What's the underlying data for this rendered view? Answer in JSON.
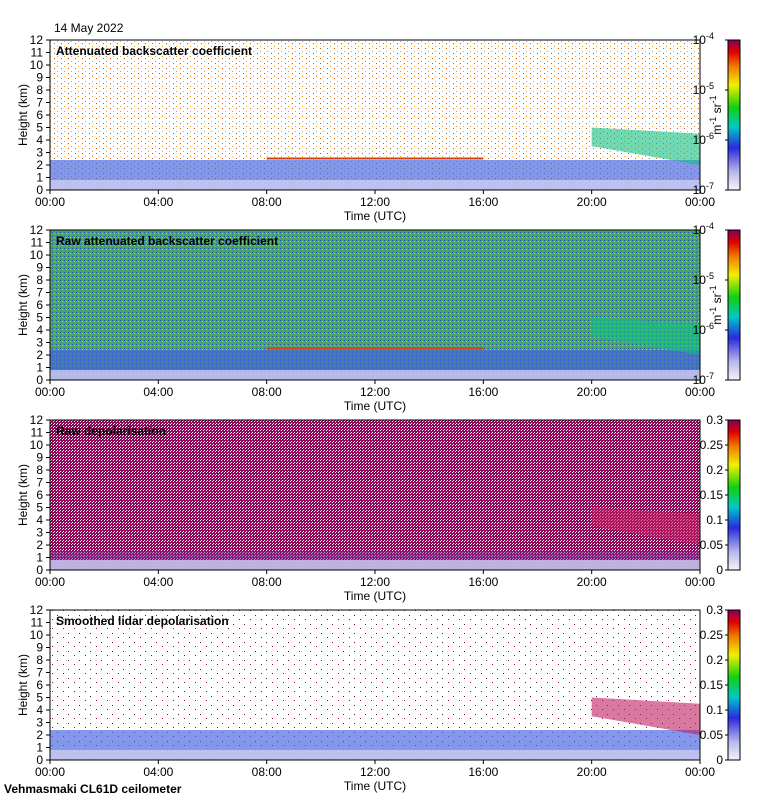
{
  "date_label": "14 May 2022",
  "footer_label": "Vehmasmaki CL61D ceilometer",
  "colors": {
    "clear": "#ffffff",
    "low": "#c8c8f0",
    "mid": "#2040e0",
    "high": "#e01010",
    "top": "#800060"
  },
  "chart_data": [
    {
      "type": "heatmap",
      "title": "Attenuated backscatter coefficient",
      "xlabel": "Time (UTC)",
      "ylabel": "Height (km)",
      "xticks": [
        "00:00",
        "04:00",
        "08:00",
        "12:00",
        "16:00",
        "20:00",
        "00:00"
      ],
      "yticks": [
        "0",
        "1",
        "2",
        "3",
        "4",
        "5",
        "6",
        "7",
        "8",
        "9",
        "10",
        "11",
        "12"
      ],
      "ylim": [
        0,
        12
      ],
      "color_scale": "log",
      "colorbar_ticks": [
        "10",
        "10",
        "10",
        "10"
      ],
      "colorbar_exps": [
        "-7",
        "-6",
        "-5",
        "-4"
      ],
      "colorbar_unit": "m",
      "colorbar_unit_exp1": "-1",
      "colorbar_unit2": " sr",
      "colorbar_unit_exp2": "-1"
    },
    {
      "type": "heatmap",
      "title": "Raw attenuated backscatter coefficient",
      "xlabel": "Time (UTC)",
      "ylabel": "Height (km)",
      "xticks": [
        "00:00",
        "04:00",
        "08:00",
        "12:00",
        "16:00",
        "20:00",
        "00:00"
      ],
      "yticks": [
        "0",
        "1",
        "2",
        "3",
        "4",
        "5",
        "6",
        "7",
        "8",
        "9",
        "10",
        "11",
        "12"
      ],
      "ylim": [
        0,
        12
      ],
      "color_scale": "log",
      "colorbar_ticks": [
        "10",
        "10",
        "10",
        "10"
      ],
      "colorbar_exps": [
        "-7",
        "-6",
        "-5",
        "-4"
      ],
      "colorbar_unit": "m",
      "colorbar_unit_exp1": "-1",
      "colorbar_unit2": " sr",
      "colorbar_unit_exp2": "-1"
    },
    {
      "type": "heatmap",
      "title": "Raw depolarisation",
      "xlabel": "Time (UTC)",
      "ylabel": "Height (km)",
      "xticks": [
        "00:00",
        "04:00",
        "08:00",
        "12:00",
        "16:00",
        "20:00",
        "00:00"
      ],
      "yticks": [
        "0",
        "1",
        "2",
        "3",
        "4",
        "5",
        "6",
        "7",
        "8",
        "9",
        "10",
        "11",
        "12"
      ],
      "ylim": [
        0,
        12
      ],
      "color_scale": "linear",
      "colorbar_ticks": [
        "0",
        "0.05",
        "0.1",
        "0.15",
        "0.2",
        "0.25",
        "0.3"
      ],
      "colorbar_range": [
        0,
        0.3
      ]
    },
    {
      "type": "heatmap",
      "title": "Smoothed lidar depolarisation",
      "xlabel": "Time (UTC)",
      "ylabel": "Height (km)",
      "xticks": [
        "00:00",
        "04:00",
        "08:00",
        "12:00",
        "16:00",
        "20:00",
        "00:00"
      ],
      "yticks": [
        "0",
        "1",
        "2",
        "3",
        "4",
        "5",
        "6",
        "7",
        "8",
        "9",
        "10",
        "11",
        "12"
      ],
      "ylim": [
        0,
        12
      ],
      "color_scale": "linear",
      "colorbar_ticks": [
        "0",
        "0.05",
        "0.1",
        "0.15",
        "0.2",
        "0.25",
        "0.3"
      ],
      "colorbar_range": [
        0,
        0.3
      ]
    }
  ]
}
